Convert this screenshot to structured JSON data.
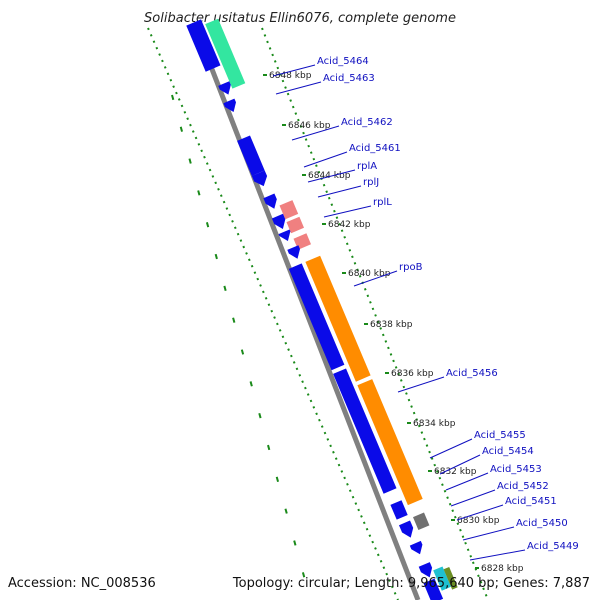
{
  "title": "Solibacter usitatus Ellin6076, complete genome",
  "accession_text": "Accession: NC_008536",
  "summary_text": "Topology: circular; Length: 9,965,640 bp; Genes: 7,887",
  "colors": {
    "backbone": "#808080",
    "gc_skew_dots": "#1a8a1a",
    "cds_forward": "#0a0ae8",
    "cds_reverse": "#0a0ae8",
    "rpoB": "#ff8c00",
    "ribosomal": "#f08080",
    "highlight_teal": "#33e6a0",
    "misc_gray": "#707070",
    "misc_cyan": "#20c0d0",
    "misc_olive": "#6b8e23",
    "label_line": "#1010c0"
  },
  "ticks": [
    "6848 kbp",
    "6846 kbp",
    "6844 kbp",
    "6842 kbp",
    "6840 kbp",
    "6838 kbp",
    "6836 kbp",
    "6834 kbp",
    "6832 kbp",
    "6830 kbp",
    "6828 kbp"
  ],
  "genes": [
    "Acid_5464",
    "Acid_5463",
    "Acid_5462",
    "Acid_5461",
    "rplA",
    "rplJ",
    "rplL",
    "rpoB",
    "Acid_5456",
    "Acid_5455",
    "Acid_5454",
    "Acid_5453",
    "Acid_5452",
    "Acid_5451",
    "Acid_5450",
    "Acid_5449"
  ]
}
